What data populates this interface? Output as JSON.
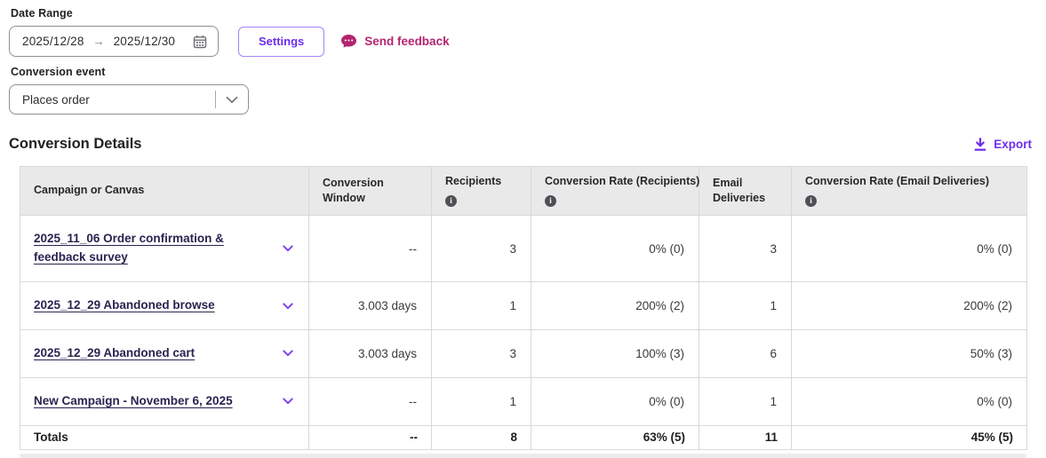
{
  "filters": {
    "date_range_label": "Date Range",
    "date_start": "2025/12/28",
    "date_arrow": "→",
    "date_end": "2025/12/30",
    "settings_label": "Settings",
    "feedback_label": "Send feedback",
    "conversion_event_label": "Conversion event",
    "conversion_event_value": "Places order"
  },
  "section": {
    "title": "Conversion Details",
    "export_label": "Export"
  },
  "colors": {
    "accent_purple": "#6D2DF0",
    "feedback_magenta": "#B3246F",
    "campaign_link_navy": "#2A2350",
    "header_gray": "#E9E9E9"
  },
  "table": {
    "columns": [
      {
        "label": "Campaign or Canvas",
        "info": false
      },
      {
        "label": "Conversion Window",
        "info": false
      },
      {
        "label": "Recipients",
        "info": true
      },
      {
        "label": "Conversion Rate (Recipients)",
        "info": true
      },
      {
        "label": "Email Deliveries",
        "info": false
      },
      {
        "label": "Conversion Rate (Email Deliveries)",
        "info": true
      }
    ],
    "rows": [
      {
        "campaign": "2025_11_06 Order confirmation & feedback survey",
        "conversion_window": "--",
        "recipients": "3",
        "conversion_rate_recipients": "0% (0)",
        "email_deliveries": "3",
        "conversion_rate_email_deliveries": "0% (0)"
      },
      {
        "campaign": "2025_12_29 Abandoned browse",
        "conversion_window": "3.003 days",
        "recipients": "1",
        "conversion_rate_recipients": "200% (2)",
        "email_deliveries": "1",
        "conversion_rate_email_deliveries": "200% (2)"
      },
      {
        "campaign": "2025_12_29 Abandoned cart",
        "conversion_window": "3.003 days",
        "recipients": "3",
        "conversion_rate_recipients": "100% (3)",
        "email_deliveries": "6",
        "conversion_rate_email_deliveries": "50% (3)"
      },
      {
        "campaign": "New Campaign - November 6, 2025",
        "conversion_window": "--",
        "recipients": "1",
        "conversion_rate_recipients": "0% (0)",
        "email_deliveries": "1",
        "conversion_rate_email_deliveries": "0% (0)"
      }
    ],
    "totals": {
      "label": "Totals",
      "conversion_window": "--",
      "recipients": "8",
      "conversion_rate_recipients": "63% (5)",
      "email_deliveries": "11",
      "conversion_rate_email_deliveries": "45% (5)"
    }
  }
}
